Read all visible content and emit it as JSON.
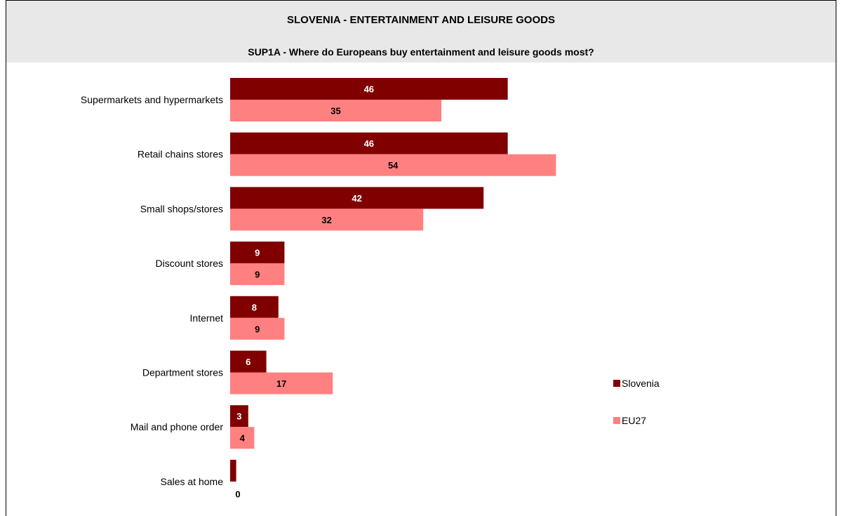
{
  "chart_data": {
    "type": "bar",
    "orientation": "horizontal",
    "title": "SLOVENIA - ENTERTAINMENT AND LEISURE GOODS",
    "subtitle": "SUP1A - Where do Europeans buy entertainment and leisure goods most?",
    "categories": [
      "Supermarkets and hypermarkets",
      "Retail chains stores",
      "Small shops/stores",
      "Discount stores",
      "Internet",
      "Department stores",
      "Mail and phone order",
      "Sales at home"
    ],
    "series": [
      {
        "name": "Slovenia",
        "color": "#800000",
        "label_color": "#ffffff",
        "values": [
          46,
          46,
          42,
          9,
          8,
          6,
          3,
          1
        ]
      },
      {
        "name": "EU27",
        "color": "#ff8080",
        "label_color": "#000000",
        "values": [
          35,
          54,
          32,
          9,
          9,
          17,
          4,
          0
        ]
      }
    ],
    "xlim": [
      0,
      100
    ],
    "grid": false,
    "legend_position": "right"
  }
}
